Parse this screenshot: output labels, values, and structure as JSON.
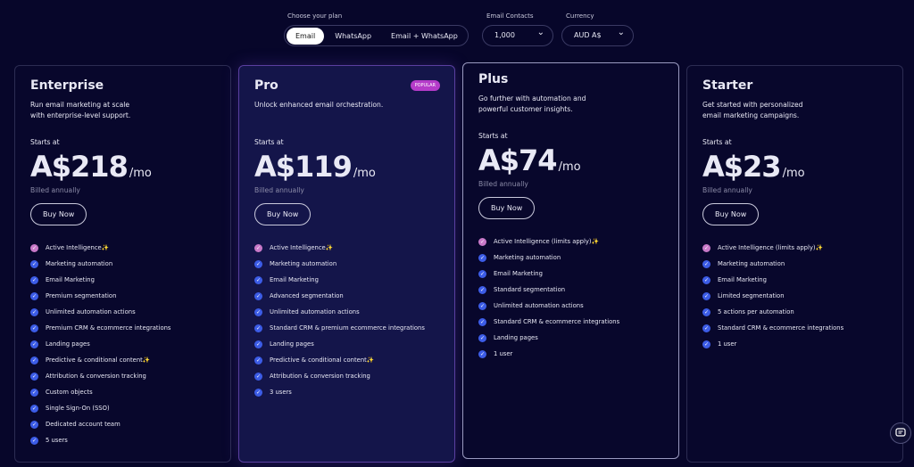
{
  "controls": {
    "plan_label": "Choose your plan",
    "plan_options": [
      "Email",
      "WhatsApp",
      "Email + WhatsApp"
    ],
    "contacts_label": "Email Contacts",
    "contacts_value": "1,000",
    "currency_label": "Currency",
    "currency_value": "AUD A$"
  },
  "plans": [
    {
      "name": "Enterprise",
      "description": [
        "Run email marketing at scale",
        "with enterprise-level support."
      ],
      "starts": "Starts at",
      "price": "A$218",
      "period": "/mo",
      "billing": "Billed annually",
      "button": "Buy Now",
      "features": [
        "Active Intelligence✨",
        "Marketing automation",
        "Email Marketing",
        "Premium segmentation",
        "Unlimited automation actions",
        "Premium CRM & ecommerce integrations",
        "Landing pages",
        "Predictive & conditional content✨",
        "Attribution & conversion tracking",
        "Custom objects",
        "Single Sign-On (SSO)",
        "Dedicated account team",
        "5 users"
      ]
    },
    {
      "name": "Pro",
      "badge": "POPULAR",
      "description": [
        "Unlock enhanced email orchestration."
      ],
      "starts": "Starts at",
      "price": "A$119",
      "period": "/mo",
      "billing": "Billed annually",
      "button": "Buy Now",
      "features": [
        "Active Intelligence✨",
        "Marketing automation",
        "Email Marketing",
        "Advanced segmentation",
        "Unlimited automation actions",
        "Standard CRM & premium ecommerce integrations",
        "Landing pages",
        "Predictive & conditional content✨",
        "Attribution & conversion tracking",
        "3 users"
      ]
    },
    {
      "name": "Plus",
      "description": [
        "Go further with automation and",
        "powerful customer insights."
      ],
      "starts": "Starts at",
      "price": "A$74",
      "period": "/mo",
      "billing": "Billed annually",
      "button": "Buy Now",
      "features": [
        "Active Intelligence (limits apply)✨",
        "Marketing automation",
        "Email Marketing",
        "Standard segmentation",
        "Unlimited automation actions",
        "Standard CRM & ecommerce integrations",
        "Landing pages",
        "1 user"
      ]
    },
    {
      "name": "Starter",
      "description": [
        "Get started with personalized",
        "email marketing campaigns."
      ],
      "starts": "Starts at",
      "price": "A$23",
      "period": "/mo",
      "billing": "Billed annually",
      "button": "Buy Now",
      "features": [
        "Active Intelligence (limits apply)✨",
        "Marketing automation",
        "Email Marketing",
        "Limited segmentation",
        "5 actions per automation",
        "Standard CRM & ecommerce integrations",
        "1 user"
      ]
    }
  ]
}
